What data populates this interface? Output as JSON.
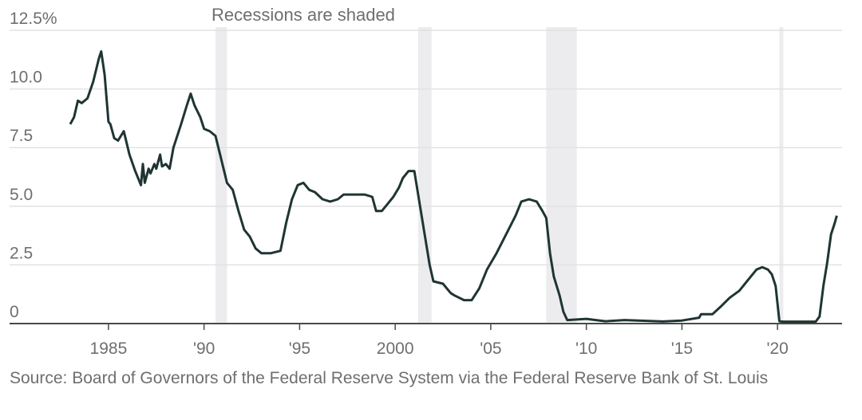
{
  "chart_data": {
    "type": "line",
    "annotation": "Recessions are shaded",
    "source": "Source: Board of Governors of the Federal Reserve System via the Federal Reserve Bank of St. Louis",
    "xlim": [
      1980.0,
      2023.6
    ],
    "ylim": [
      0,
      12.5
    ],
    "y_ticks": [
      {
        "value": 12.5,
        "label": "12.5%"
      },
      {
        "value": 10.0,
        "label": "10.0"
      },
      {
        "value": 7.5,
        "label": "7.5"
      },
      {
        "value": 5.0,
        "label": "5.0"
      },
      {
        "value": 2.5,
        "label": "2.5"
      },
      {
        "value": 0,
        "label": "0"
      }
    ],
    "x_ticks": [
      {
        "value": 1985,
        "label": "1985"
      },
      {
        "value": 1990,
        "label": "'90"
      },
      {
        "value": 1995,
        "label": "'95"
      },
      {
        "value": 2000,
        "label": "2000"
      },
      {
        "value": 2005,
        "label": "'05"
      },
      {
        "value": 2010,
        "label": "'10"
      },
      {
        "value": 2015,
        "label": "'15"
      },
      {
        "value": 2020,
        "label": "'20"
      }
    ],
    "grid": "horizontal",
    "recessions": [
      [
        1990.6,
        1991.2
      ],
      [
        2001.2,
        2001.9
      ],
      [
        2007.9,
        2009.5
      ],
      [
        2020.1,
        2020.3
      ]
    ],
    "colors": {
      "line": "#1f3533",
      "recession": "#ececee",
      "grid": "#e2e2e2",
      "axis": "#4a4a4a"
    },
    "x": [
      1983.0,
      1983.2,
      1983.4,
      1983.6,
      1983.9,
      1984.2,
      1984.5,
      1984.62,
      1984.8,
      1985.0,
      1985.1,
      1985.3,
      1985.5,
      1985.8,
      1986.1,
      1986.4,
      1986.7,
      1986.8,
      1986.9,
      1987.1,
      1987.2,
      1987.4,
      1987.5,
      1987.7,
      1987.8,
      1988.0,
      1988.2,
      1988.4,
      1988.8,
      1989.1,
      1989.3,
      1989.5,
      1989.8,
      1990.0,
      1990.3,
      1990.6,
      1990.9,
      1991.2,
      1991.5,
      1991.8,
      1992.1,
      1992.4,
      1992.7,
      1993.0,
      1993.5,
      1994.0,
      1994.3,
      1994.6,
      1994.9,
      1995.2,
      1995.5,
      1995.8,
      1996.2,
      1996.6,
      1997.0,
      1997.3,
      1997.6,
      1998.0,
      1998.4,
      1998.8,
      1999.0,
      1999.3,
      1999.6,
      1999.9,
      2000.2,
      2000.4,
      2000.7,
      2001.0,
      2001.2,
      2001.5,
      2001.8,
      2002.0,
      2002.5,
      2002.9,
      2003.1,
      2003.6,
      2004.0,
      2004.4,
      2004.8,
      2005.3,
      2005.8,
      2006.3,
      2006.6,
      2007.0,
      2007.4,
      2007.7,
      2007.9,
      2008.1,
      2008.3,
      2008.6,
      2008.8,
      2009.0,
      2010.0,
      2011.0,
      2012.0,
      2013.0,
      2014.0,
      2015.0,
      2015.9,
      2016.0,
      2016.6,
      2017.0,
      2017.5,
      2018.0,
      2018.5,
      2018.9,
      2019.2,
      2019.5,
      2019.7,
      2019.9,
      2020.1,
      2020.3,
      2021.0,
      2022.0,
      2022.2,
      2022.4,
      2022.6,
      2022.8,
      2023.0,
      2023.1
    ],
    "values": [
      8.5,
      8.8,
      9.5,
      9.4,
      9.6,
      10.3,
      11.3,
      11.6,
      10.6,
      8.6,
      8.5,
      7.9,
      7.8,
      8.2,
      7.2,
      6.5,
      5.9,
      6.8,
      6.0,
      6.6,
      6.4,
      6.8,
      6.6,
      7.2,
      6.7,
      6.8,
      6.6,
      7.5,
      8.5,
      9.3,
      9.8,
      9.3,
      8.8,
      8.3,
      8.2,
      8.0,
      7.0,
      6.0,
      5.7,
      4.8,
      4.0,
      3.7,
      3.2,
      3.0,
      3.0,
      3.1,
      4.3,
      5.3,
      5.9,
      6.0,
      5.7,
      5.6,
      5.3,
      5.2,
      5.3,
      5.5,
      5.5,
      5.5,
      5.5,
      5.4,
      4.8,
      4.8,
      5.1,
      5.4,
      5.8,
      6.2,
      6.5,
      6.5,
      5.5,
      4.0,
      2.5,
      1.8,
      1.7,
      1.3,
      1.2,
      1.0,
      1.0,
      1.5,
      2.3,
      3.0,
      3.8,
      4.6,
      5.2,
      5.3,
      5.2,
      4.8,
      4.5,
      3.0,
      2.0,
      1.2,
      0.5,
      0.15,
      0.2,
      0.1,
      0.15,
      0.12,
      0.09,
      0.13,
      0.25,
      0.4,
      0.4,
      0.7,
      1.1,
      1.4,
      1.9,
      2.3,
      2.4,
      2.3,
      2.1,
      1.6,
      0.1,
      0.08,
      0.08,
      0.08,
      0.3,
      1.6,
      2.6,
      3.8,
      4.3,
      4.6
    ]
  }
}
